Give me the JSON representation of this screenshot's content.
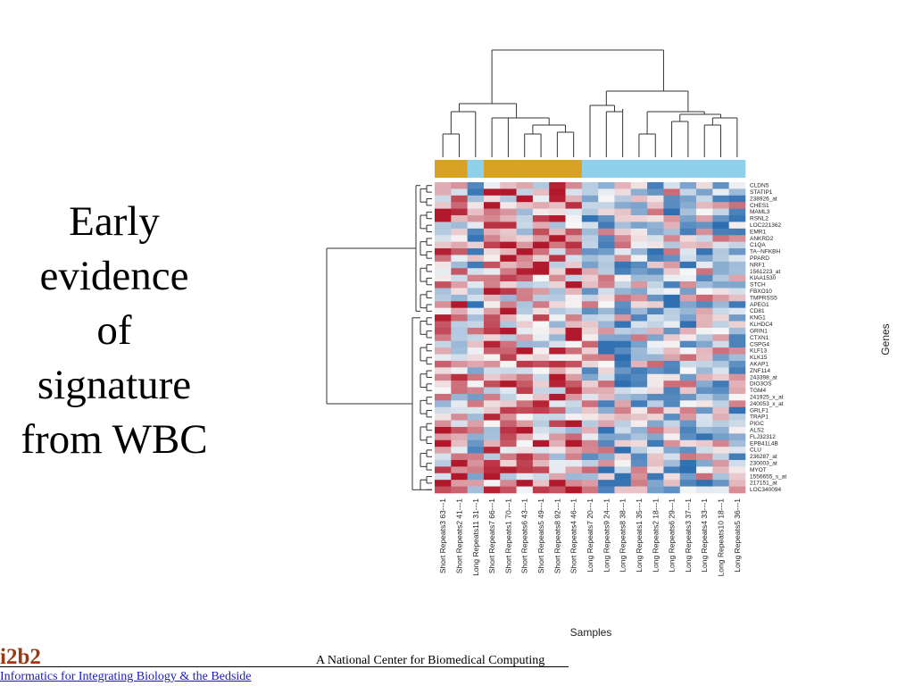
{
  "slide": {
    "title_lines": [
      "Early",
      "evidence",
      "of",
      "signature",
      "from WBC"
    ],
    "logo": "i2b2",
    "logo_subtitle": "Informatics for Integrating Biology & the Bedside",
    "center_text": "A National Center for Biomedical Computing",
    "colors": {
      "logo": "#9b3a12",
      "link": "#1a1ab8"
    }
  },
  "chart_data": {
    "type": "heatmap",
    "xlabel": "Samples",
    "ylabel": "Genes",
    "x": [
      "Short Repeats3 63---1",
      "Short Repeats2 41---1",
      "Long Repeats11 31---1",
      "Short Repeats7 66---1",
      "Short Repeats1 70---1",
      "Short Repeats6 43---1",
      "Short Repeats5 49---1",
      "Short Repeats8 92---1",
      "Short Repeats4 46---1",
      "Long Repeats7 20---1",
      "Long Repeats9 24---1",
      "Long Repeats8 38---1",
      "Long Repeats1 35---1",
      "Long Repeats2 18---1",
      "Long Repeats6 29---1",
      "Long Repeats3 37---1",
      "Long Repeats4 33---1",
      "Long Repeats10 18---1",
      "Long Repeats5 36---1"
    ],
    "sample_groups": [
      "gold",
      "gold",
      "blue",
      "gold",
      "gold",
      "gold",
      "gold",
      "gold",
      "gold",
      "blue",
      "blue",
      "blue",
      "blue",
      "blue",
      "blue",
      "blue",
      "blue",
      "blue",
      "blue"
    ],
    "group_colors": {
      "gold": "#d7a225",
      "blue": "#8fd0ea"
    },
    "y": [
      "CLDN5",
      "STATIP1",
      "238926_at",
      "CHES1",
      "MAML3",
      "RSNL2",
      "LOC221362",
      "EMR1",
      "ANKRD2",
      "C1QA",
      "TA--NFKBH",
      "PPARD",
      "NRF1",
      "1561223_at",
      "KIAA1530",
      "STCH",
      "FBXO10",
      "TMPRSS5",
      "APEG1",
      "CD81",
      "KNG1",
      "KLHDC4",
      "GRIN1",
      "CTXN1",
      "CSPG4",
      "KLF13",
      "KLK15",
      "AKAP1",
      "ZNF114",
      "243398_at",
      "DIO3OS",
      "TGM4",
      "241925_x_at",
      "240053_x_at",
      "GRLF1",
      "TRAP1",
      "PIGC",
      "ALS2",
      "FLJ32312",
      "EPB41L4B",
      "CLU",
      "236287_at",
      "230003_at",
      "MYOT",
      "1556655_s_at",
      "217151_at",
      "LOC340094"
    ],
    "color_scale": {
      "low": "#2166ac",
      "mid": "#f7f7f7",
      "high": "#b2182b"
    }
  }
}
